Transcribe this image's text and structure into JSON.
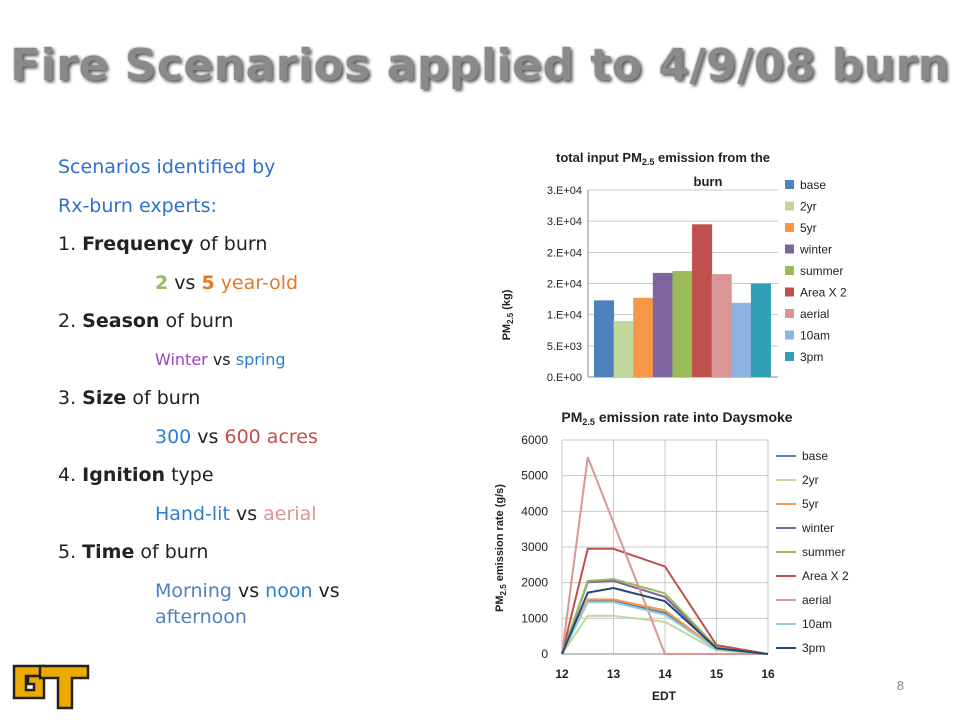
{
  "slide": {
    "title": "Fire Scenarios applied to 4/9/08 burn",
    "page_number": "8",
    "logo_text": "GT"
  },
  "bullets": {
    "intro1": "Scenarios identified by",
    "intro2": "Rx-burn experts:",
    "item1": {
      "num": "1. ",
      "bold": "Frequency",
      "rest": " of burn"
    },
    "item1_sub": {
      "a": "2",
      "vs": " vs ",
      "b": "5",
      "rest": " year-old"
    },
    "item2": {
      "num": "2. ",
      "bold": "Season",
      "rest": " of burn"
    },
    "item2_sub": {
      "a": "Winter",
      "vs": " vs ",
      "b": "spring"
    },
    "item3": {
      "num": "3. ",
      "bold": "Size",
      "rest": " of burn"
    },
    "item3_sub": {
      "a": "300",
      "vs": " vs ",
      "b": "600 acres"
    },
    "item4": {
      "num": "4. ",
      "bold": "Ignition",
      "rest": " type"
    },
    "item4_sub": {
      "a": "Hand-lit",
      "vs": " vs ",
      "b": "aerial"
    },
    "item5": {
      "num": "5. ",
      "bold": "Time",
      "rest": " of burn"
    },
    "item5_sub": {
      "a": "Morning",
      "vs": " vs ",
      "b": "noon",
      "vs2": " vs",
      "c": "afternoon"
    }
  },
  "chart_data": [
    {
      "type": "bar",
      "title_line1": "total input PM",
      "title_sub": "2.5",
      "title_line1_end": " emission from the",
      "title_line2": "burn",
      "ylabel": "PM",
      "ylabel_sub": "2.5",
      "ylabel_end": " (kg)",
      "yticks": [
        "0.E+00",
        "5.E+03",
        "1.E+04",
        "2.E+04",
        "2.E+04",
        "3.E+04",
        "3.E+04"
      ],
      "ylim": [
        0,
        30000
      ],
      "categories": [
        "base",
        "2yr",
        "5yr",
        "winter",
        "summer",
        "Area X 2",
        "aerial",
        "10am",
        "3pm"
      ],
      "values": [
        12300,
        9000,
        12700,
        16700,
        17000,
        24500,
        16500,
        11900,
        15000
      ],
      "colors": [
        "#4f81bd",
        "#c3d69b",
        "#f79646",
        "#8064a2",
        "#9bbb59",
        "#c0504d",
        "#d99694",
        "#8db3e2",
        "#31a0b4"
      ],
      "legend_position": "right"
    },
    {
      "type": "line",
      "title": "PM",
      "title_sub": "2.5",
      "title_end": " emission rate into Daysmoke",
      "xlabel": "EDT",
      "ylabel": "PM",
      "ylabel_sub": "2.5",
      "ylabel_end": " emission rate (g/s)",
      "x": [
        12,
        12.5,
        13,
        14,
        15,
        16
      ],
      "xticks": [
        "12",
        "13",
        "14",
        "15",
        "16"
      ],
      "yticks": [
        "0",
        "1000",
        "2000",
        "3000",
        "4000",
        "5000",
        "6000"
      ],
      "ylim": [
        0,
        6000
      ],
      "xlim": [
        12,
        16
      ],
      "legend_position": "right",
      "series": [
        {
          "name": "base",
          "color": "#4f81bd",
          "x": [
            12,
            12.5,
            13,
            14,
            15,
            16
          ],
          "values": [
            0,
            1480,
            1480,
            1150,
            150,
            0
          ]
        },
        {
          "name": "2yr",
          "color": "#c3d69b",
          "x": [
            12,
            12.5,
            13,
            14,
            15,
            16
          ],
          "values": [
            0,
            1070,
            1070,
            900,
            100,
            0
          ]
        },
        {
          "name": "5yr",
          "color": "#f79646",
          "x": [
            12,
            12.5,
            13,
            14,
            15,
            16
          ],
          "values": [
            0,
            1530,
            1530,
            1220,
            150,
            0
          ]
        },
        {
          "name": "winter",
          "color": "#8064a2",
          "x": [
            12,
            12.5,
            13,
            14,
            15,
            16
          ],
          "values": [
            0,
            2010,
            2050,
            1600,
            180,
            0
          ]
        },
        {
          "name": "summer",
          "color": "#9bbb59",
          "x": [
            12,
            12.5,
            13,
            14,
            15,
            16
          ],
          "values": [
            0,
            2050,
            2100,
            1700,
            190,
            0
          ]
        },
        {
          "name": "Area X 2",
          "color": "#c0504d",
          "x": [
            12,
            12.5,
            13,
            14,
            15,
            16
          ],
          "values": [
            0,
            2950,
            2950,
            2450,
            250,
            0
          ]
        },
        {
          "name": "aerial",
          "color": "#d99694",
          "x": [
            12,
            12.5,
            14,
            15,
            16
          ],
          "values": [
            0,
            5520,
            0,
            0,
            0
          ]
        },
        {
          "name": "10am",
          "color": "#93cddd",
          "x": [
            12,
            12.5,
            13,
            14,
            15,
            16
          ],
          "values": [
            0,
            1450,
            1450,
            1100,
            140,
            0
          ]
        },
        {
          "name": "3pm",
          "color": "#1f497d",
          "x": [
            12,
            12.5,
            13,
            14,
            15,
            16
          ],
          "values": [
            0,
            1720,
            1850,
            1480,
            160,
            0
          ]
        }
      ]
    }
  ]
}
